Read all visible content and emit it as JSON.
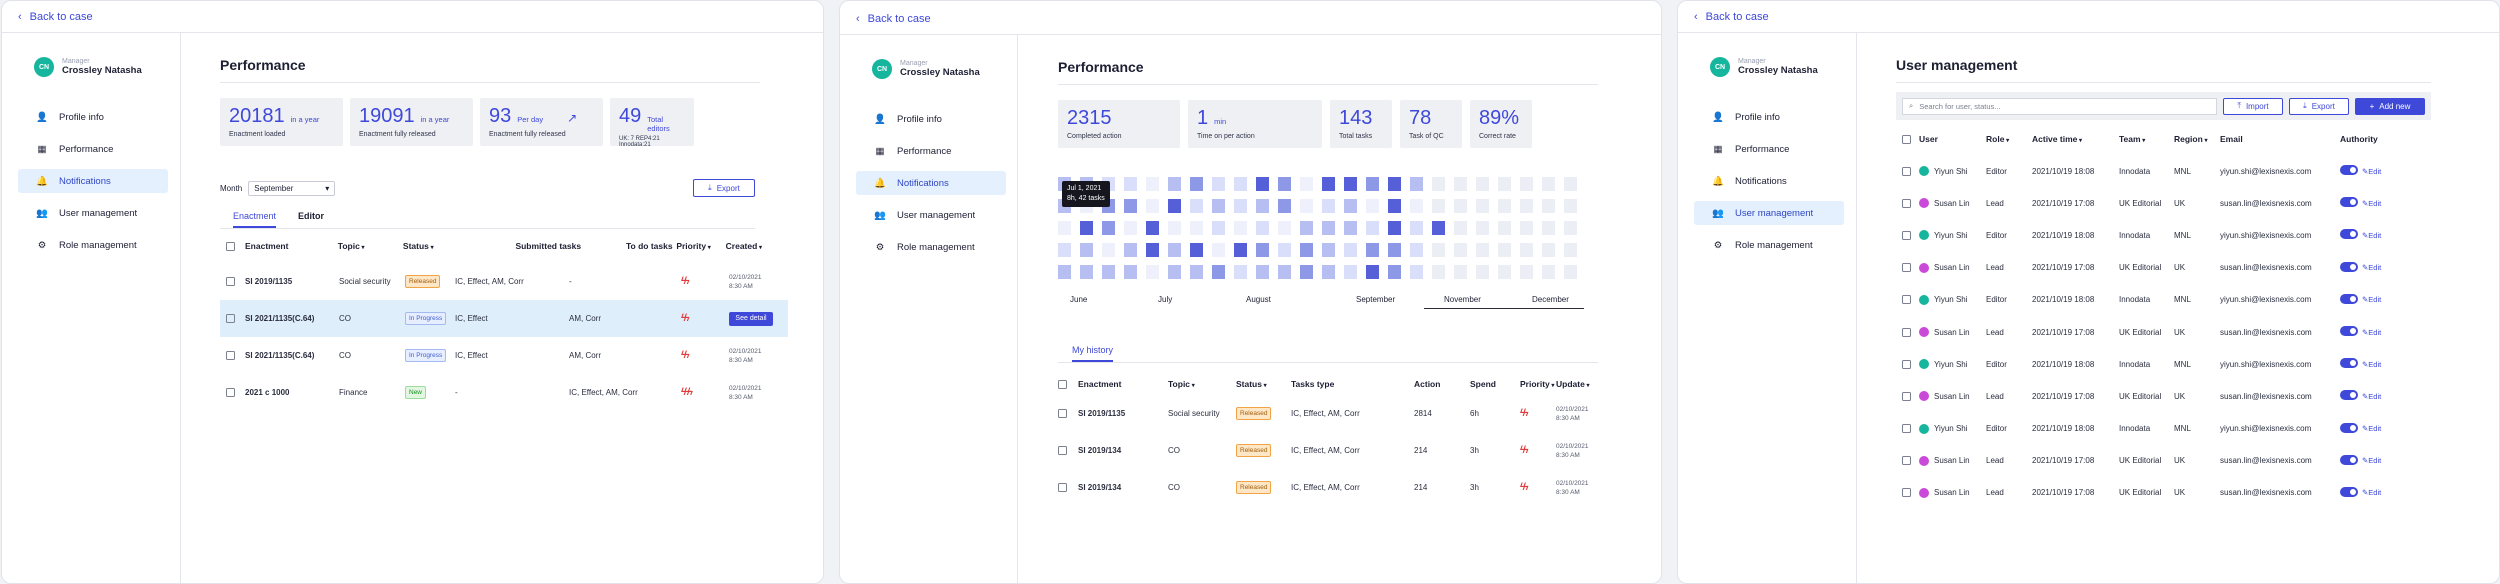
{
  "common": {
    "back": "Back to case",
    "role": "Manager",
    "name": "Crossley Natasha",
    "initials": "CN",
    "nav": [
      "Profile info",
      "Performance",
      "Notifications",
      "User management",
      "Role management"
    ]
  },
  "p1": {
    "title": "Performance",
    "stats": [
      {
        "v": "20181",
        "u": "in a year",
        "s": "Enactment loaded"
      },
      {
        "v": "19091",
        "u": "in a year",
        "s": "Enactment fully released"
      },
      {
        "v": "93",
        "u": "Per day",
        "s": "Enactment fully released"
      },
      {
        "v": "49",
        "u": "Total editors",
        "s": "UK: 7    REP4:21    Innodata:21"
      }
    ],
    "month_label": "Month",
    "month_value": "September",
    "export": "Export",
    "tabs": [
      "Enactment",
      "Editor"
    ],
    "headers": [
      "Enactment",
      "Topic",
      "Status",
      "Submitted tasks",
      "To do tasks",
      "Priority",
      "Created"
    ],
    "rows": [
      {
        "e": "SI 2019/1135",
        "t": "Social security",
        "st": "Released",
        "sc": "rel",
        "sub": "IC, Effect, AM, Corr",
        "todo": "-",
        "p": "ϟϟ",
        "d1": "02/10/2021",
        "d2": "8:30 AM"
      },
      {
        "e": "SI 2021/1135(C.64)",
        "t": "CO",
        "st": "In Progress",
        "sc": "prog",
        "sub": "IC, Effect",
        "todo": "AM, Corr",
        "p": "ϟϟ",
        "d1": "",
        "d2": "",
        "action": "See detail"
      },
      {
        "e": "SI 2021/1135(C.64)",
        "t": "CO",
        "st": "In Progress",
        "sc": "prog",
        "sub": "IC, Effect",
        "todo": "AM, Corr",
        "p": "ϟϟ",
        "d1": "02/10/2021",
        "d2": "8:30 AM"
      },
      {
        "e": "2021 c 1000",
        "t": "Finance",
        "st": "New",
        "sc": "new",
        "sub": "-",
        "todo": "IC, Effect, AM, Corr",
        "p": "ϟϟϟ",
        "d1": "02/10/2021",
        "d2": "8:30 AM"
      }
    ]
  },
  "p2": {
    "title": "Performance",
    "stats": [
      {
        "v": "2315",
        "u": "",
        "s": "Completed action"
      },
      {
        "v": "1",
        "u": "min",
        "s": "Time on per action"
      },
      {
        "v": "143",
        "u": "",
        "s": "Total tasks"
      },
      {
        "v": "78",
        "u": "",
        "s": "Task of QC"
      },
      {
        "v": "89%",
        "u": "",
        "s": "Correct rate"
      }
    ],
    "tooltip1": "Jul 1, 2021",
    "tooltip2": "8h, 42 tasks",
    "months": [
      "June",
      "July",
      "August",
      "September",
      "November",
      "December"
    ],
    "history_tab": "My history",
    "headers": [
      "Enactment",
      "Topic",
      "Status",
      "Tasks type",
      "Action",
      "Spend",
      "Priority",
      "Update"
    ],
    "rows": [
      {
        "e": "SI 2019/1135",
        "t": "Social security",
        "st": "Released",
        "tt": "IC, Effect, AM, Corr",
        "a": "2814",
        "s": "6h",
        "p": "ϟϟ",
        "d1": "02/10/2021",
        "d2": "8:30 AM"
      },
      {
        "e": "SI 2019/134",
        "t": "CO",
        "st": "Released",
        "tt": "IC, Effect, AM, Corr",
        "a": "214",
        "s": "3h",
        "p": "ϟϟ",
        "d1": "02/10/2021",
        "d2": "8:30 AM"
      },
      {
        "e": "SI 2019/134",
        "t": "CO",
        "st": "Released",
        "tt": "IC, Effect, AM, Corr",
        "a": "214",
        "s": "3h",
        "p": "ϟϟ",
        "d1": "02/10/2021",
        "d2": "8:30 AM"
      }
    ]
  },
  "p3": {
    "title": "User management",
    "search_placeholder": "Search for user, status...",
    "import": "Import",
    "export": "Export",
    "add": "Add new",
    "headers": [
      "User",
      "Role",
      "Active time",
      "Team",
      "Region",
      "Email",
      "Authority"
    ],
    "edit": "Edit",
    "rows": [
      {
        "u": "Yiyun Shi",
        "r": "Editor",
        "a": "2021/10/19 18:08",
        "t": "Innodata",
        "g": "MNL",
        "e": "yiyun.shi@lexisnexis.com",
        "c": "#16b59d"
      },
      {
        "u": "Susan Lin",
        "r": "Lead",
        "a": "2021/10/19 17:08",
        "t": "UK Editorial",
        "g": "UK",
        "e": "susan.lin@lexisnexis.com",
        "c": "#c94ad8"
      },
      {
        "u": "Yiyun Shi",
        "r": "Editor",
        "a": "2021/10/19 18:08",
        "t": "Innodata",
        "g": "MNL",
        "e": "yiyun.shi@lexisnexis.com",
        "c": "#16b59d"
      },
      {
        "u": "Susan Lin",
        "r": "Lead",
        "a": "2021/10/19 17:08",
        "t": "UK Editorial",
        "g": "UK",
        "e": "susan.lin@lexisnexis.com",
        "c": "#c94ad8"
      },
      {
        "u": "Yiyun Shi",
        "r": "Editor",
        "a": "2021/10/19 18:08",
        "t": "Innodata",
        "g": "MNL",
        "e": "yiyun.shi@lexisnexis.com",
        "c": "#16b59d"
      },
      {
        "u": "Susan Lin",
        "r": "Lead",
        "a": "2021/10/19 17:08",
        "t": "UK Editorial",
        "g": "UK",
        "e": "susan.lin@lexisnexis.com",
        "c": "#c94ad8"
      },
      {
        "u": "Yiyun Shi",
        "r": "Editor",
        "a": "2021/10/19 18:08",
        "t": "Innodata",
        "g": "MNL",
        "e": "yiyun.shi@lexisnexis.com",
        "c": "#16b59d"
      },
      {
        "u": "Susan Lin",
        "r": "Lead",
        "a": "2021/10/19 17:08",
        "t": "UK Editorial",
        "g": "UK",
        "e": "susan.lin@lexisnexis.com",
        "c": "#c94ad8"
      },
      {
        "u": "Yiyun Shi",
        "r": "Editor",
        "a": "2021/10/19 18:08",
        "t": "Innodata",
        "g": "MNL",
        "e": "yiyun.shi@lexisnexis.com",
        "c": "#16b59d"
      },
      {
        "u": "Susan Lin",
        "r": "Lead",
        "a": "2021/10/19 17:08",
        "t": "UK Editorial",
        "g": "UK",
        "e": "susan.lin@lexisnexis.com",
        "c": "#c94ad8"
      },
      {
        "u": "Susan Lin",
        "r": "Lead",
        "a": "2021/10/19 17:08",
        "t": "UK Editorial",
        "g": "UK",
        "e": "susan.lin@lexisnexis.com",
        "c": "#c94ad8"
      }
    ]
  }
}
